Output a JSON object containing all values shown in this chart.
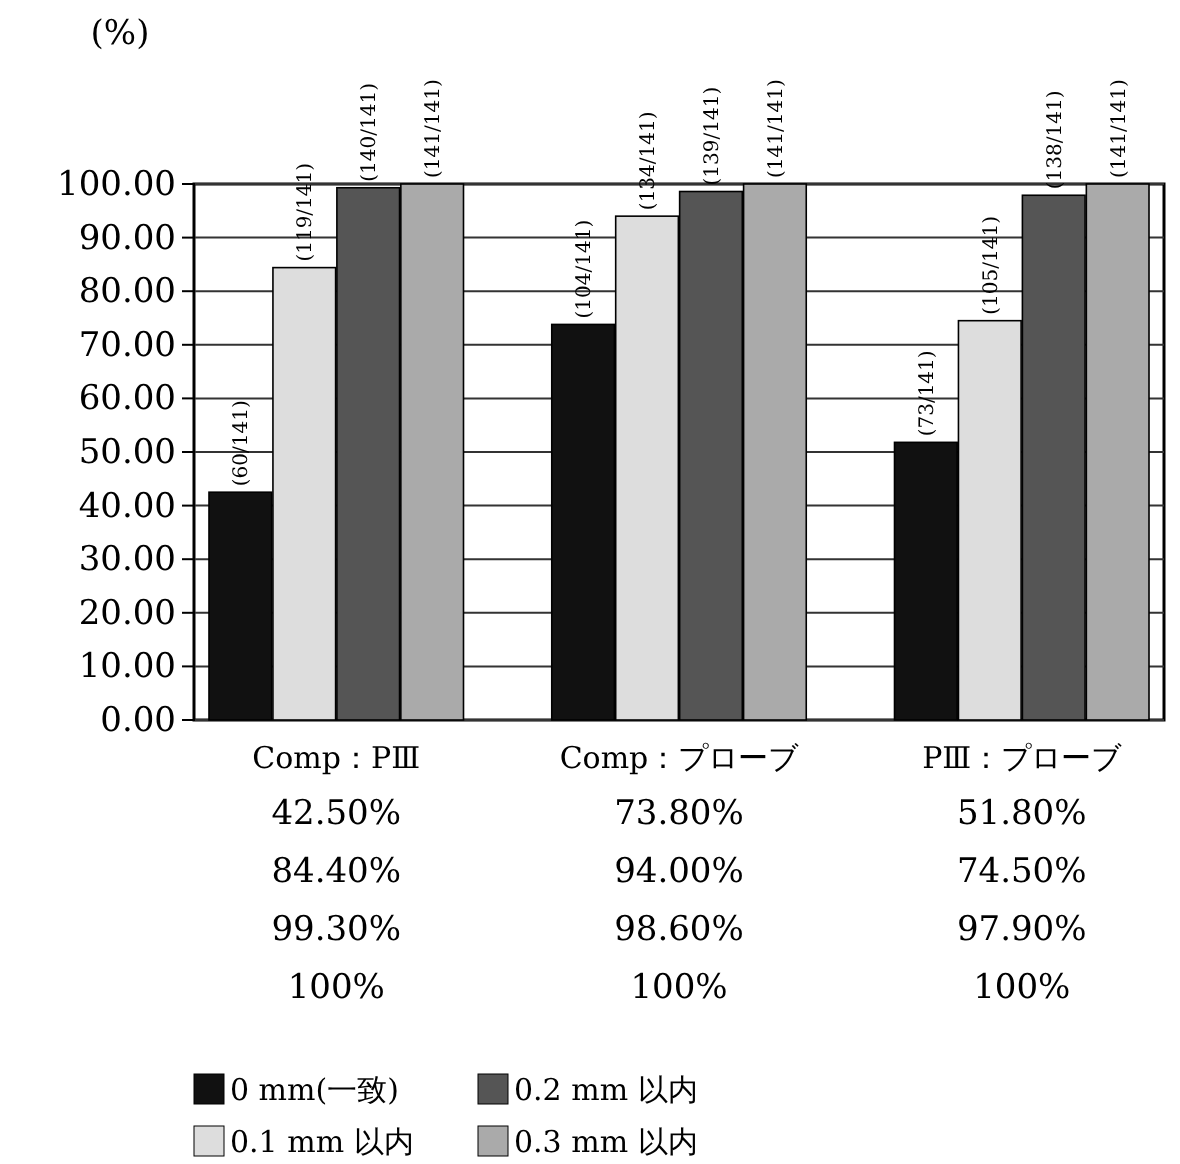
{
  "chart_data": {
    "type": "bar",
    "ylabel": "(%)",
    "categories": [
      "Comp：PⅢ",
      "Comp：プローブ",
      "PⅢ：プローブ"
    ],
    "ylim": [
      0,
      100
    ],
    "yticks": [
      {
        "value": 0,
        "label": "0.00"
      },
      {
        "value": 10,
        "label": "10.00"
      },
      {
        "value": 20,
        "label": "20.00"
      },
      {
        "value": 30,
        "label": "30.00"
      },
      {
        "value": 40,
        "label": "40.00"
      },
      {
        "value": 50,
        "label": "50.00"
      },
      {
        "value": 60,
        "label": "60.00"
      },
      {
        "value": 70,
        "label": "70.00"
      },
      {
        "value": 80,
        "label": "80.00"
      },
      {
        "value": 90,
        "label": "90.00"
      },
      {
        "value": 100,
        "label": "100.00"
      }
    ],
    "grid": "y",
    "legend": "bottom",
    "series": [
      {
        "name": "0 mm(一致)",
        "color": "#111111",
        "values": [
          42.5,
          73.8,
          51.8
        ],
        "value_labels": [
          "42.50%",
          "73.80%",
          "51.80%"
        ]
      },
      {
        "name": "0.1 mm 以内",
        "color": "#dddddd",
        "values": [
          84.4,
          94.0,
          74.5
        ],
        "value_labels": [
          "84.40%",
          "94.00%",
          "74.50%"
        ]
      },
      {
        "name": "0.2 mm 以内",
        "color": "#555555",
        "values": [
          99.3,
          98.6,
          97.9
        ],
        "value_labels": [
          "99.30%",
          "98.60%",
          "97.90%"
        ]
      },
      {
        "name": "0.3 mm 以内",
        "color": "#aaaaaa",
        "values": [
          100,
          100,
          100
        ],
        "value_labels": [
          "100%",
          "100%",
          "100%"
        ]
      }
    ],
    "annotations": [
      "(60/141)",
      "(119/141)",
      "(140/141)",
      "(141/141)",
      "(104/141)",
      "(134/141)",
      "(139/141)",
      "(141/141)",
      "(73/141)",
      "(105/141)",
      "(138/141)",
      "(141/141)"
    ]
  }
}
